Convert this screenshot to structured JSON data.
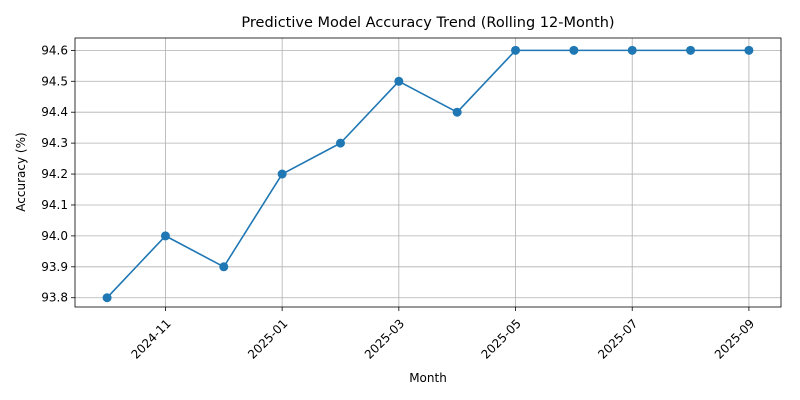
{
  "chart_data": {
    "type": "line",
    "title": "Predictive Model Accuracy Trend (Rolling 12-Month)",
    "xlabel": "Month",
    "ylabel": "Accuracy (%)",
    "x": [
      "2024-10",
      "2024-11",
      "2024-12",
      "2025-01",
      "2025-02",
      "2025-03",
      "2025-04",
      "2025-05",
      "2025-06",
      "2025-07",
      "2025-08",
      "2025-09"
    ],
    "series": [
      {
        "values": [
          93.8,
          94.0,
          93.9,
          94.2,
          94.3,
          94.5,
          94.4,
          94.6,
          94.6,
          94.6,
          94.6,
          94.6
        ]
      }
    ],
    "x_ticks": [
      "2024-11",
      "2025-01",
      "2025-03",
      "2025-05",
      "2025-07",
      "2025-09"
    ],
    "y_ticks": [
      "93.8",
      "93.9",
      "94.0",
      "94.1",
      "94.2",
      "94.3",
      "94.4",
      "94.5",
      "94.6"
    ],
    "ylim": [
      93.77,
      94.64
    ],
    "grid": true,
    "marker": "circle",
    "line_color": "#1f77b4"
  }
}
